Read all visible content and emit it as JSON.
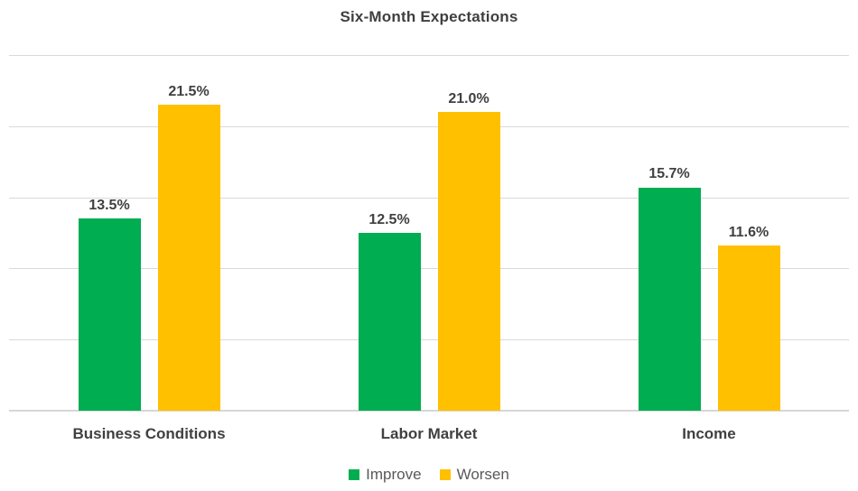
{
  "title": "Six-Month Expectations",
  "colors": {
    "improve": "#00AD50",
    "worsen": "#FFC000",
    "gridline": "#D9D9D9",
    "axis_line": "#D6D6D6",
    "title_text": "#3F3F3F",
    "data_label_text": "#404040",
    "category_label_text": "#404040",
    "legend_text": "#595959",
    "background": "#FFFFFF"
  },
  "chart_data": {
    "type": "bar",
    "title": "Six-Month Expectations",
    "categories": [
      "Business Conditions",
      "Labor Market",
      "Income"
    ],
    "series": [
      {
        "name": "Improve",
        "color": "#00AD50",
        "values": [
          13.5,
          12.5,
          15.7
        ],
        "labels": [
          "13.5%",
          "12.5%",
          "15.7%"
        ]
      },
      {
        "name": "Worsen",
        "color": "#FFC000",
        "values": [
          21.5,
          21.0,
          11.6
        ],
        "labels": [
          "21.5%",
          "21.0%",
          "11.6%"
        ]
      }
    ],
    "xlabel": "",
    "ylabel": "",
    "ylim": [
      0,
      25
    ],
    "gridline_step": 5,
    "grid": true,
    "y_axis_tick_labels_visible": false,
    "data_labels_visible": true,
    "legend_position": "bottom",
    "legend_entries": [
      "Improve",
      "Worsen"
    ]
  }
}
